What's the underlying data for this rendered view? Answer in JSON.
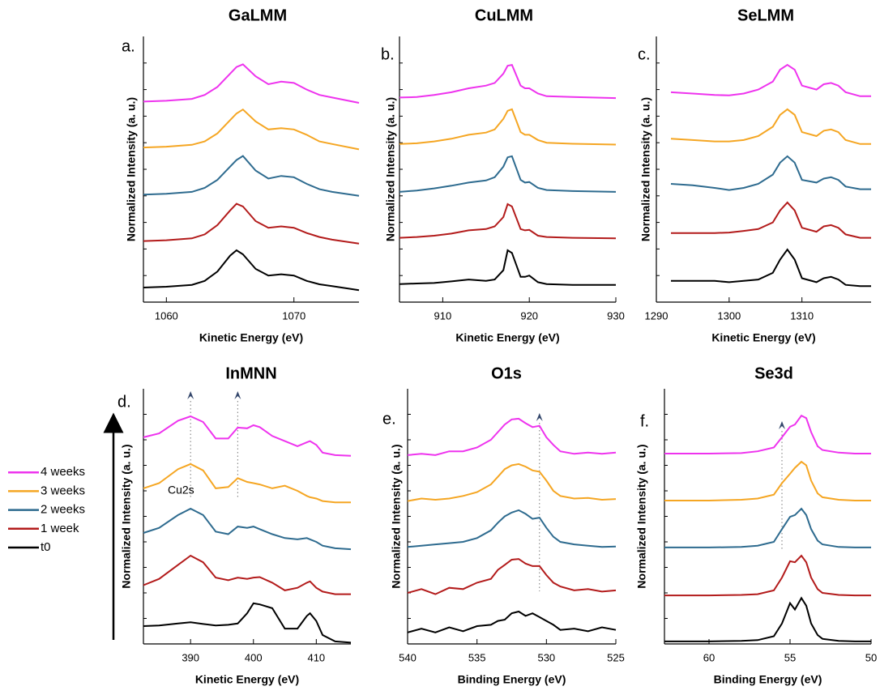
{
  "chart_data": [
    {
      "type": "line",
      "label": "a.",
      "title": "GaLMM",
      "xlabel": "Kinetic Energy (eV)",
      "ylabel": "Normalized Intensity (a. u.)",
      "xlim": [
        1058.2,
        1075.1
      ],
      "xticks": [
        1060,
        1070
      ],
      "ylim": [
        0,
        10
      ],
      "x": [
        1058.2,
        1060,
        1062,
        1063,
        1064,
        1065,
        1065.5,
        1066,
        1067,
        1068,
        1069,
        1070,
        1071,
        1072,
        1073,
        1075.1
      ],
      "series": [
        {
          "name": "t0",
          "color": "#000000",
          "values": [
            0.55,
            0.58,
            0.65,
            0.8,
            1.15,
            1.75,
            1.95,
            1.8,
            1.25,
            1.0,
            1.05,
            1.0,
            0.8,
            0.67,
            0.6,
            0.45
          ]
        },
        {
          "name": "1 week",
          "color": "#b31b1b",
          "values": [
            2.3,
            2.33,
            2.4,
            2.55,
            2.9,
            3.45,
            3.7,
            3.6,
            3.05,
            2.8,
            2.85,
            2.8,
            2.6,
            2.45,
            2.35,
            2.2
          ]
        },
        {
          "name": "2 weeks",
          "color": "#2e6b8f",
          "values": [
            4.05,
            4.08,
            4.15,
            4.3,
            4.6,
            5.1,
            5.35,
            5.5,
            4.95,
            4.65,
            4.75,
            4.7,
            4.45,
            4.25,
            4.15,
            4.0
          ]
        },
        {
          "name": "3 weeks",
          "color": "#f5a623",
          "values": [
            5.82,
            5.85,
            5.92,
            6.05,
            6.35,
            6.85,
            7.1,
            7.25,
            6.8,
            6.5,
            6.55,
            6.5,
            6.3,
            6.05,
            5.95,
            5.75
          ]
        },
        {
          "name": "4 weeks",
          "color": "#ee33ee",
          "values": [
            7.55,
            7.58,
            7.65,
            7.8,
            8.1,
            8.6,
            8.85,
            8.95,
            8.5,
            8.2,
            8.3,
            8.25,
            8.0,
            7.8,
            7.7,
            7.5
          ]
        }
      ]
    },
    {
      "type": "line",
      "label": "b.",
      "title": "CuLMM",
      "xlabel": "Kinetic Energy (eV)",
      "ylabel": "Normalized Intensity (a. u.)",
      "xlim": [
        905,
        930
      ],
      "xticks": [
        910,
        920,
        930
      ],
      "ylim": [
        0,
        10
      ],
      "x": [
        905,
        907,
        909,
        911,
        913,
        915,
        916,
        917,
        917.5,
        918,
        919,
        919.5,
        920,
        921,
        922,
        925,
        930
      ],
      "series": [
        {
          "name": "t0",
          "color": "#000000",
          "values": [
            0.68,
            0.7,
            0.72,
            0.78,
            0.85,
            0.8,
            0.85,
            1.2,
            1.95,
            1.85,
            0.95,
            0.95,
            1.0,
            0.75,
            0.68,
            0.65,
            0.65
          ]
        },
        {
          "name": "1 week",
          "color": "#b31b1b",
          "values": [
            2.42,
            2.45,
            2.5,
            2.58,
            2.7,
            2.75,
            2.85,
            3.2,
            3.69,
            3.6,
            2.75,
            2.7,
            2.72,
            2.5,
            2.45,
            2.42,
            2.4
          ]
        },
        {
          "name": "2 weeks",
          "color": "#2e6b8f",
          "values": [
            4.15,
            4.2,
            4.28,
            4.38,
            4.5,
            4.58,
            4.7,
            5.1,
            5.45,
            5.49,
            4.6,
            4.5,
            4.52,
            4.3,
            4.22,
            4.18,
            4.15
          ]
        },
        {
          "name": "3 weeks",
          "color": "#f5a623",
          "values": [
            5.95,
            5.98,
            6.05,
            6.15,
            6.3,
            6.38,
            6.5,
            6.9,
            7.2,
            7.26,
            6.4,
            6.3,
            6.3,
            6.1,
            6.0,
            5.96,
            5.93
          ]
        },
        {
          "name": "4 weeks",
          "color": "#ee33ee",
          "values": [
            7.7,
            7.72,
            7.8,
            7.9,
            8.05,
            8.15,
            8.25,
            8.6,
            8.9,
            8.93,
            8.15,
            8.05,
            8.05,
            7.85,
            7.75,
            7.72,
            7.68
          ]
        }
      ]
    },
    {
      "type": "line",
      "label": "c.",
      "title": "SeLMM",
      "xlabel": "Kinetic Energy (eV)",
      "ylabel": "Normalized Intensity (a. u.)",
      "xlim": [
        1290,
        1319.5
      ],
      "xticks": [
        1290,
        1300,
        1310
      ],
      "ylim": [
        0,
        10
      ],
      "x": [
        1292,
        1295,
        1298,
        1300,
        1302,
        1304,
        1306,
        1307,
        1308,
        1309,
        1310,
        1312,
        1313,
        1314,
        1315,
        1316,
        1318,
        1319.5
      ],
      "series": [
        {
          "name": "t0",
          "color": "#000000",
          "values": [
            0.8,
            0.8,
            0.8,
            0.75,
            0.8,
            0.85,
            1.1,
            1.6,
            1.98,
            1.6,
            0.9,
            0.75,
            0.9,
            0.95,
            0.85,
            0.65,
            0.6,
            0.6
          ]
        },
        {
          "name": "1 week",
          "color": "#b31b1b",
          "values": [
            2.6,
            2.6,
            2.6,
            2.62,
            2.68,
            2.75,
            3.0,
            3.45,
            3.75,
            3.45,
            2.8,
            2.65,
            2.85,
            2.9,
            2.8,
            2.55,
            2.42,
            2.42
          ]
        },
        {
          "name": "2 weeks",
          "color": "#2e6b8f",
          "values": [
            4.45,
            4.4,
            4.3,
            4.22,
            4.3,
            4.45,
            4.8,
            5.25,
            5.49,
            5.25,
            4.6,
            4.5,
            4.65,
            4.7,
            4.6,
            4.35,
            4.25,
            4.25
          ]
        },
        {
          "name": "3 weeks",
          "color": "#f5a623",
          "values": [
            6.15,
            6.1,
            6.05,
            6.05,
            6.1,
            6.25,
            6.6,
            7.05,
            7.26,
            7.05,
            6.4,
            6.25,
            6.45,
            6.5,
            6.4,
            6.1,
            5.95,
            5.95
          ]
        },
        {
          "name": "4 weeks",
          "color": "#ee33ee",
          "values": [
            7.9,
            7.85,
            7.8,
            7.78,
            7.85,
            8.0,
            8.3,
            8.75,
            8.93,
            8.75,
            8.15,
            8.0,
            8.2,
            8.25,
            8.15,
            7.9,
            7.75,
            7.75
          ]
        }
      ]
    },
    {
      "type": "line",
      "label": "d.",
      "title": "InMNN",
      "xlabel": "Kinetic Energy (eV)",
      "ylabel": "Normalized Intensity (a. u.)",
      "xlim": [
        382.5,
        415.5
      ],
      "xticks": [
        390,
        400,
        410
      ],
      "ylim": [
        0,
        10
      ],
      "annotation": "Cu2s",
      "markers": [
        390,
        397.5
      ],
      "x": [
        382.5,
        385,
        388,
        390,
        392,
        394,
        396,
        397.5,
        399,
        400,
        401,
        403,
        405,
        407,
        408.5,
        409,
        410,
        411,
        413,
        415.5
      ],
      "series": [
        {
          "name": "t0",
          "color": "#000000",
          "values": [
            0.7,
            0.72,
            0.8,
            0.85,
            0.78,
            0.72,
            0.75,
            0.8,
            1.2,
            1.59,
            1.55,
            1.4,
            0.6,
            0.6,
            1.1,
            1.2,
            0.9,
            0.35,
            0.1,
            0.05
          ]
        },
        {
          "name": "1 week",
          "color": "#b31b1b",
          "values": [
            2.3,
            2.55,
            3.1,
            3.46,
            3.2,
            2.6,
            2.5,
            2.6,
            2.55,
            2.6,
            2.62,
            2.4,
            2.1,
            2.2,
            2.4,
            2.45,
            2.2,
            2.05,
            1.95,
            1.95
          ]
        },
        {
          "name": "2 weeks",
          "color": "#2e6b8f",
          "values": [
            4.35,
            4.55,
            5.05,
            5.3,
            5.05,
            4.4,
            4.3,
            4.6,
            4.55,
            4.6,
            4.5,
            4.3,
            4.15,
            4.1,
            4.15,
            4.1,
            4.0,
            3.85,
            3.75,
            3.71
          ]
        },
        {
          "name": "3 weeks",
          "color": "#f5a623",
          "values": [
            6.1,
            6.3,
            6.85,
            7.05,
            6.8,
            6.1,
            6.15,
            6.5,
            6.35,
            6.3,
            6.25,
            6.1,
            6.2,
            6.0,
            5.8,
            5.75,
            5.7,
            5.6,
            5.55,
            5.55
          ]
        },
        {
          "name": "4 weeks",
          "color": "#ee33ee",
          "values": [
            8.1,
            8.25,
            8.75,
            8.92,
            8.7,
            8.05,
            8.05,
            8.48,
            8.45,
            8.57,
            8.5,
            8.15,
            7.95,
            7.75,
            7.9,
            7.95,
            7.8,
            7.5,
            7.4,
            7.37
          ]
        }
      ]
    },
    {
      "type": "line",
      "label": "e.",
      "title": "O1s",
      "xlabel": "Binding Energy (eV)",
      "ylabel": "Normalized Intensity (a. u.)",
      "xlim": [
        540,
        525
      ],
      "xticks": [
        540,
        535,
        530,
        525
      ],
      "ylim": [
        0,
        10
      ],
      "markers": [
        530.5
      ],
      "x": [
        540,
        539,
        538,
        537,
        536,
        535,
        534,
        533.5,
        533,
        532.5,
        532,
        531.5,
        531,
        530.5,
        530,
        529.5,
        529,
        528,
        527,
        526,
        525
      ],
      "series": [
        {
          "name": "t0",
          "color": "#000000",
          "values": [
            0.45,
            0.6,
            0.45,
            0.65,
            0.5,
            0.7,
            0.75,
            0.9,
            0.95,
            1.2,
            1.27,
            1.1,
            1.2,
            1.05,
            0.9,
            0.75,
            0.55,
            0.6,
            0.5,
            0.65,
            0.55
          ]
        },
        {
          "name": "1 week",
          "color": "#b31b1b",
          "values": [
            2.0,
            2.15,
            1.95,
            2.2,
            2.15,
            2.4,
            2.55,
            2.9,
            3.1,
            3.3,
            3.33,
            3.15,
            3.05,
            3.05,
            2.7,
            2.4,
            2.25,
            2.1,
            2.15,
            2.05,
            2.1
          ]
        },
        {
          "name": "2 weeks",
          "color": "#2e6b8f",
          "values": [
            3.8,
            3.85,
            3.9,
            3.95,
            4.0,
            4.15,
            4.45,
            4.75,
            5.0,
            5.15,
            5.24,
            5.1,
            4.9,
            4.95,
            4.55,
            4.2,
            4.0,
            3.9,
            3.85,
            3.8,
            3.82
          ]
        },
        {
          "name": "3 weeks",
          "color": "#f5a623",
          "values": [
            5.6,
            5.7,
            5.65,
            5.7,
            5.8,
            5.95,
            6.25,
            6.55,
            6.85,
            7.0,
            7.05,
            6.95,
            6.8,
            6.75,
            6.4,
            6.0,
            5.8,
            5.7,
            5.72,
            5.65,
            5.68
          ]
        },
        {
          "name": "4 weeks",
          "color": "#ee33ee",
          "values": [
            7.4,
            7.45,
            7.4,
            7.55,
            7.55,
            7.7,
            8.0,
            8.3,
            8.6,
            8.8,
            8.83,
            8.65,
            8.5,
            8.55,
            8.1,
            7.8,
            7.55,
            7.45,
            7.5,
            7.45,
            7.5
          ]
        }
      ]
    },
    {
      "type": "line",
      "label": "f.",
      "title": "Se3d",
      "xlabel": "Binding Energy (eV)",
      "ylabel": "Normalized Intensity (a. u.)",
      "xlim": [
        62.75,
        50
      ],
      "xticks": [
        60,
        55,
        50
      ],
      "ylim": [
        0,
        10
      ],
      "markers": [
        55.5
      ],
      "x": [
        62.75,
        60,
        58,
        57,
        56,
        55.5,
        55,
        54.7,
        54.3,
        54,
        53.7,
        53.3,
        53,
        52,
        51,
        50
      ],
      "series": [
        {
          "name": "t0",
          "color": "#000000",
          "values": [
            0.1,
            0.1,
            0.12,
            0.15,
            0.3,
            0.8,
            1.6,
            1.35,
            1.8,
            1.5,
            0.8,
            0.35,
            0.2,
            0.12,
            0.1,
            0.1
          ]
        },
        {
          "name": "1 week",
          "color": "#b31b1b",
          "values": [
            1.9,
            1.9,
            1.92,
            1.95,
            2.1,
            2.6,
            3.24,
            3.2,
            3.46,
            3.2,
            2.6,
            2.15,
            2.0,
            1.92,
            1.9,
            1.9
          ]
        },
        {
          "name": "2 weeks",
          "color": "#2e6b8f",
          "values": [
            3.78,
            3.78,
            3.8,
            3.85,
            4.0,
            4.5,
            4.98,
            5.05,
            5.3,
            5.05,
            4.5,
            4.05,
            3.9,
            3.8,
            3.78,
            3.78
          ]
        },
        {
          "name": "3 weeks",
          "color": "#f5a623",
          "values": [
            5.62,
            5.62,
            5.65,
            5.7,
            5.85,
            6.3,
            6.67,
            6.9,
            7.14,
            7.0,
            6.4,
            5.9,
            5.75,
            5.65,
            5.62,
            5.62
          ]
        },
        {
          "name": "4 weeks",
          "color": "#ee33ee",
          "values": [
            7.46,
            7.46,
            7.48,
            7.55,
            7.7,
            8.1,
            8.51,
            8.6,
            8.95,
            8.85,
            8.3,
            7.75,
            7.6,
            7.5,
            7.46,
            7.46
          ]
        }
      ]
    }
  ]
}
